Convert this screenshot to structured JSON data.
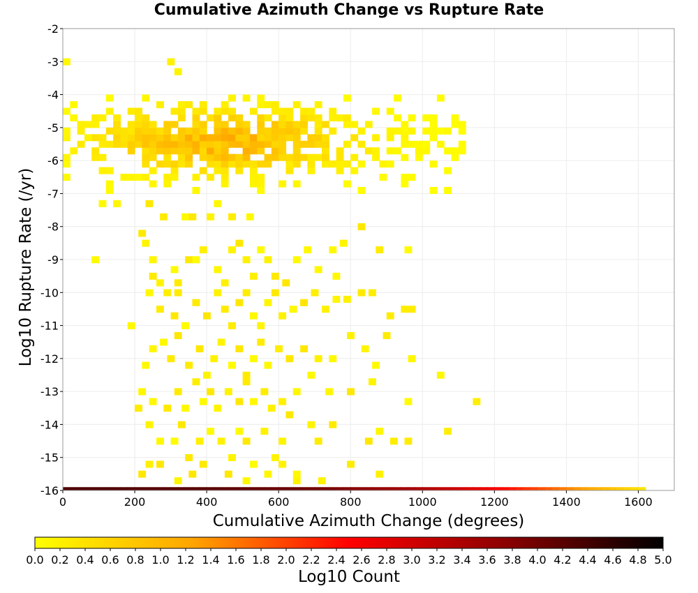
{
  "chart_data": {
    "type": "heatmap",
    "title": "Cumulative Azimuth Change vs Rupture Rate",
    "xlabel": "Cumulative Azimuth Change (degrees)",
    "ylabel": "Log10 Rupture Rate (/yr)",
    "xlim": [
      0,
      1700
    ],
    "ylim": [
      -16,
      -2
    ],
    "x_ticks": [
      "0",
      "200",
      "400",
      "600",
      "800",
      "1000",
      "1200",
      "1400",
      "1600"
    ],
    "y_ticks": [
      "-2",
      "-3",
      "-4",
      "-5",
      "-6",
      "-7",
      "-8",
      "-9",
      "-10",
      "-11",
      "-12",
      "-13",
      "-14",
      "-15",
      "-16"
    ],
    "grid": true,
    "bin_width": 20,
    "bin_height": 0.2,
    "colorbar": {
      "label": "Log10 Count",
      "range": [
        0.0,
        5.0
      ],
      "ticks": [
        "0.0",
        "0.2",
        "0.4",
        "0.6",
        "0.8",
        "1.0",
        "1.2",
        "1.4",
        "1.6",
        "1.8",
        "2.0",
        "2.2",
        "2.4",
        "2.6",
        "2.8",
        "3.0",
        "3.2",
        "3.4",
        "3.6",
        "3.8",
        "4.0",
        "4.2",
        "4.4",
        "4.6",
        "4.8",
        "5.0"
      ],
      "colors": [
        "#ffff00",
        "#ffa500",
        "#ff0000",
        "#8b0000",
        "#000000"
      ]
    },
    "bottom_row": {
      "y": -16,
      "x_start": 0,
      "x_end": 1620,
      "log10_count_profile": [
        [
          0,
          4.3
        ],
        [
          400,
          4.2
        ],
        [
          700,
          4.0
        ],
        [
          1000,
          3.4
        ],
        [
          1200,
          2.6
        ],
        [
          1350,
          1.8
        ],
        [
          1500,
          1.0
        ],
        [
          1620,
          0.3
        ]
      ]
    },
    "dense_band": {
      "y_range": [
        -7,
        -4
      ],
      "x_range": [
        0,
        1120
      ],
      "peak_log10_count": 1.3
    },
    "sparse_cells": [
      [
        0,
        -3.1
      ],
      [
        100,
        -7.4
      ],
      [
        140,
        -7.4
      ],
      [
        80,
        -9.1
      ],
      [
        180,
        -11.1
      ],
      [
        230,
        -7.4
      ],
      [
        270,
        -7.8
      ],
      [
        290,
        -3.1
      ],
      [
        310,
        -3.4
      ],
      [
        330,
        -7.8
      ],
      [
        350,
        -7.8
      ],
      [
        400,
        -7.8
      ],
      [
        420,
        -7.4
      ],
      [
        460,
        -7.8
      ],
      [
        510,
        -7.8
      ],
      [
        210,
        -8.3
      ],
      [
        220,
        -8.6
      ],
      [
        240,
        -9.1
      ],
      [
        240,
        -9.6
      ],
      [
        260,
        -9.8
      ],
      [
        300,
        -9.4
      ],
      [
        310,
        -9.8
      ],
      [
        340,
        -9.1
      ],
      [
        360,
        -9.1
      ],
      [
        380,
        -8.8
      ],
      [
        420,
        -9.4
      ],
      [
        440,
        -9.8
      ],
      [
        460,
        -8.8
      ],
      [
        480,
        -8.6
      ],
      [
        500,
        -9.1
      ],
      [
        520,
        -9.6
      ],
      [
        540,
        -8.8
      ],
      [
        560,
        -9.1
      ],
      [
        580,
        -9.6
      ],
      [
        610,
        -9.8
      ],
      [
        640,
        -9.1
      ],
      [
        670,
        -8.8
      ],
      [
        700,
        -9.4
      ],
      [
        740,
        -8.8
      ],
      [
        750,
        -9.6
      ],
      [
        770,
        -8.6
      ],
      [
        820,
        -8.1
      ],
      [
        870,
        -8.8
      ],
      [
        950,
        -8.8
      ],
      [
        230,
        -10.1
      ],
      [
        260,
        -10.6
      ],
      [
        280,
        -10.1
      ],
      [
        300,
        -10.8
      ],
      [
        310,
        -10.1
      ],
      [
        330,
        -11.1
      ],
      [
        360,
        -10.4
      ],
      [
        390,
        -10.8
      ],
      [
        420,
        -10.1
      ],
      [
        440,
        -10.6
      ],
      [
        460,
        -11.1
      ],
      [
        480,
        -10.4
      ],
      [
        500,
        -10.1
      ],
      [
        520,
        -10.8
      ],
      [
        540,
        -11.1
      ],
      [
        560,
        -10.4
      ],
      [
        580,
        -10.1
      ],
      [
        600,
        -10.8
      ],
      [
        630,
        -10.6
      ],
      [
        660,
        -10.4
      ],
      [
        690,
        -10.1
      ],
      [
        720,
        -10.6
      ],
      [
        750,
        -10.3
      ],
      [
        780,
        -10.3
      ],
      [
        820,
        -10.1
      ],
      [
        850,
        -10.1
      ],
      [
        900,
        -10.8
      ],
      [
        940,
        -10.6
      ],
      [
        960,
        -10.6
      ],
      [
        220,
        -12.3
      ],
      [
        240,
        -11.8
      ],
      [
        270,
        -11.6
      ],
      [
        290,
        -12.1
      ],
      [
        310,
        -11.4
      ],
      [
        340,
        -12.3
      ],
      [
        370,
        -11.8
      ],
      [
        390,
        -12.6
      ],
      [
        410,
        -12.1
      ],
      [
        430,
        -11.6
      ],
      [
        460,
        -12.3
      ],
      [
        480,
        -11.8
      ],
      [
        500,
        -12.6
      ],
      [
        520,
        -12.1
      ],
      [
        540,
        -11.6
      ],
      [
        560,
        -12.3
      ],
      [
        590,
        -11.8
      ],
      [
        620,
        -12.1
      ],
      [
        660,
        -11.8
      ],
      [
        700,
        -12.1
      ],
      [
        740,
        -12.1
      ],
      [
        790,
        -11.4
      ],
      [
        830,
        -11.8
      ],
      [
        860,
        -12.3
      ],
      [
        890,
        -11.4
      ],
      [
        960,
        -12.1
      ],
      [
        210,
        -13.1
      ],
      [
        240,
        -13.4
      ],
      [
        280,
        -13.6
      ],
      [
        310,
        -13.1
      ],
      [
        330,
        -13.6
      ],
      [
        360,
        -12.8
      ],
      [
        380,
        -13.4
      ],
      [
        400,
        -13.1
      ],
      [
        420,
        -13.6
      ],
      [
        450,
        -13.1
      ],
      [
        480,
        -13.4
      ],
      [
        500,
        -12.8
      ],
      [
        520,
        -13.4
      ],
      [
        550,
        -13.1
      ],
      [
        570,
        -13.6
      ],
      [
        600,
        -13.4
      ],
      [
        620,
        -13.8
      ],
      [
        640,
        -13.1
      ],
      [
        680,
        -12.6
      ],
      [
        730,
        -13.1
      ],
      [
        790,
        -13.1
      ],
      [
        850,
        -12.8
      ],
      [
        950,
        -13.4
      ],
      [
        1040,
        -12.6
      ],
      [
        1140,
        -13.4
      ],
      [
        200,
        -13.6
      ],
      [
        230,
        -14.1
      ],
      [
        260,
        -14.6
      ],
      [
        300,
        -14.6
      ],
      [
        320,
        -14.1
      ],
      [
        340,
        -15.1
      ],
      [
        370,
        -14.6
      ],
      [
        400,
        -14.3
      ],
      [
        430,
        -14.6
      ],
      [
        460,
        -15.1
      ],
      [
        480,
        -14.3
      ],
      [
        500,
        -14.6
      ],
      [
        520,
        -15.3
      ],
      [
        550,
        -14.3
      ],
      [
        580,
        -15.1
      ],
      [
        600,
        -14.6
      ],
      [
        640,
        -15.6
      ],
      [
        680,
        -14.1
      ],
      [
        700,
        -14.6
      ],
      [
        740,
        -14.1
      ],
      [
        790,
        -15.3
      ],
      [
        840,
        -14.6
      ],
      [
        870,
        -14.3
      ],
      [
        910,
        -14.6
      ],
      [
        950,
        -14.6
      ],
      [
        1060,
        -14.3
      ],
      [
        210,
        -15.6
      ],
      [
        230,
        -15.3
      ],
      [
        260,
        -15.3
      ],
      [
        310,
        -15.8
      ],
      [
        350,
        -15.6
      ],
      [
        380,
        -15.3
      ],
      [
        450,
        -15.6
      ],
      [
        500,
        -15.8
      ],
      [
        560,
        -15.6
      ],
      [
        600,
        -15.3
      ],
      [
        640,
        -15.8
      ],
      [
        710,
        -15.8
      ],
      [
        870,
        -15.6
      ]
    ]
  }
}
